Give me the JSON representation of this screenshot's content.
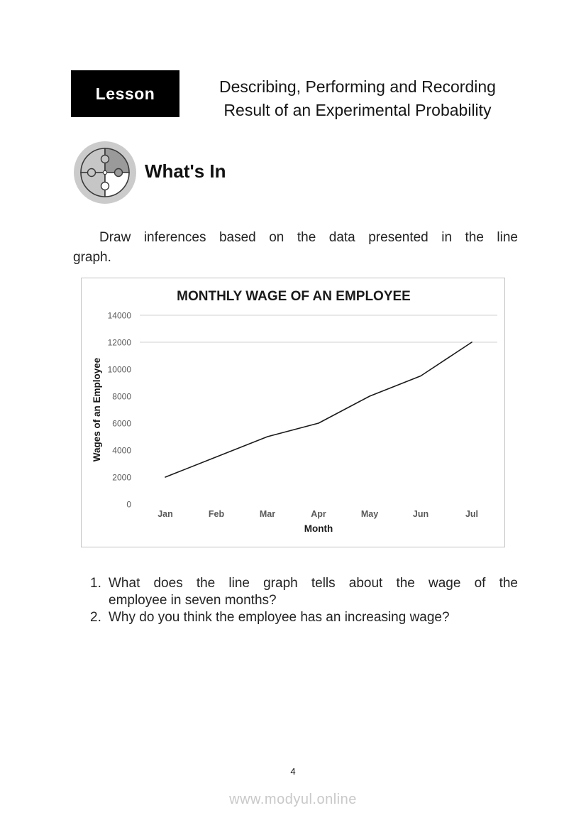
{
  "header": {
    "lesson_label": "Lesson",
    "title_lines": [
      "Describing, Performing and Recording",
      "Result of an Experimental Probability"
    ]
  },
  "section": {
    "icon": "puzzle-icon",
    "heading": "What's In"
  },
  "intro": {
    "lines": [
      "Draw inferences based on the data presented in the line",
      "graph."
    ]
  },
  "chart_data": {
    "type": "line",
    "title": "MONTHLY WAGE OF AN EMPLOYEE",
    "categories": [
      "Jan",
      "Feb",
      "Mar",
      "Apr",
      "May",
      "Jun",
      "Jul"
    ],
    "values": [
      2000,
      3500,
      5000,
      6000,
      8000,
      9500,
      12000
    ],
    "xlabel": "Month",
    "ylabel": "Wages of an Employee",
    "ylim": [
      0,
      14000
    ],
    "yticks": [
      0,
      2000,
      4000,
      6000,
      8000,
      10000,
      12000,
      14000
    ],
    "visible_gridline_values": [
      12000,
      14000
    ],
    "grid": "horizontal-partial",
    "legend": "none",
    "line_color": "#1a1a1a",
    "gridline_color": "#d2d2d2",
    "tick_color": "#595959"
  },
  "questions": [
    {
      "number": "1.",
      "lines": [
        "What does the line graph tells about the wage of the",
        "employee in seven months?"
      ]
    },
    {
      "number": "2.",
      "lines": [
        "Why do you think the employee has an increasing wage?"
      ]
    }
  ],
  "footer": {
    "page_number": "4",
    "watermark": "www.modyul.online"
  },
  "colors": {
    "lesson_box": "#000000",
    "text": "#1a1a1a",
    "chart_border": "#c3c3c3",
    "watermark_gray": "#c9c9c9"
  }
}
